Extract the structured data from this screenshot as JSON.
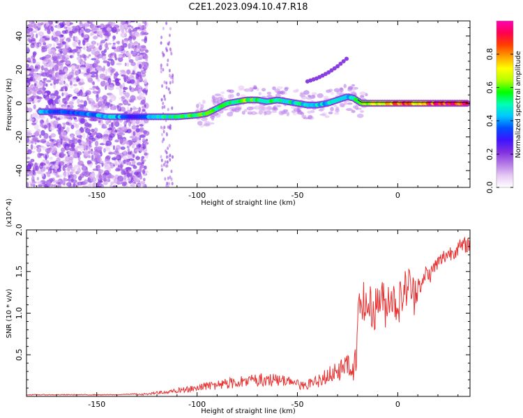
{
  "chart_data": [
    {
      "type": "heatmap",
      "title": "C2E1.2023.094.10.47.R18",
      "xlabel": "Height of straight line (km)",
      "ylabel": "Frequency (Hz)",
      "xlim": [
        -185,
        36
      ],
      "ylim": [
        -50,
        49
      ],
      "x_ticks": [
        -150,
        -100,
        -50,
        0
      ],
      "y_ticks": [
        -40,
        -20,
        0,
        20,
        40
      ],
      "colorbar": {
        "label": "Normalized spectral amplitude",
        "range": [
          0,
          1
        ],
        "ticks": [
          0.0,
          0.2,
          0.4,
          0.6,
          0.8
        ],
        "colormap": [
          "#ffffff",
          "#e6c8f5",
          "#b478e6",
          "#7f2fe0",
          "#3c14ff",
          "#0050ff",
          "#00c8ff",
          "#00ffb4",
          "#00ff00",
          "#b4ff00",
          "#ffff00",
          "#ffa000",
          "#ff3c00",
          "#ff0050",
          "#ff00b4"
        ]
      },
      "main_track": {
        "x": [
          -178,
          -168,
          -158,
          -150,
          -145,
          -138,
          -132,
          -120,
          -110,
          -100,
          -95,
          -90,
          -85,
          -80,
          -75,
          -70,
          -65,
          -60,
          -55,
          -50,
          -45,
          -40,
          -35,
          -30,
          -25,
          -22,
          -18,
          -12,
          -5,
          0,
          5,
          10,
          15,
          20,
          25,
          30,
          35
        ],
        "y": [
          -5,
          -5,
          -6,
          -7,
          -8,
          -8,
          -8,
          -8,
          -8,
          -7,
          -6,
          -3,
          0,
          1,
          2,
          2,
          1,
          2,
          1,
          0,
          -1,
          -1,
          0,
          2,
          4,
          3,
          0,
          0,
          0,
          0,
          0,
          0,
          0,
          0,
          0,
          0,
          0
        ],
        "amplitude": [
          0.45,
          0.35,
          0.35,
          0.4,
          0.45,
          0.4,
          0.3,
          0.45,
          0.55,
          0.6,
          0.55,
          0.55,
          0.55,
          0.55,
          0.6,
          0.5,
          0.55,
          0.55,
          0.5,
          0.45,
          0.5,
          0.45,
          0.45,
          0.45,
          0.45,
          0.5,
          0.55,
          0.65,
          0.7,
          0.8,
          0.85,
          0.75,
          0.85,
          0.9,
          0.9,
          0.9,
          0.85
        ]
      },
      "secondary_track": {
        "x": [
          -45,
          -40,
          -35,
          -30,
          -25
        ],
        "y": [
          13,
          15,
          18,
          22,
          27
        ],
        "amplitude": [
          0.2,
          0.2,
          0.2,
          0.2,
          0.2
        ]
      }
    },
    {
      "type": "line",
      "xlabel": "Height of straight line (km)",
      "ylabel": "SNR (10 * v/v)",
      "y_multiplier": "(x10^4)",
      "xlim": [
        -185,
        36
      ],
      "ylim": [
        0,
        2.0
      ],
      "x_ticks": [
        -150,
        -100,
        -50,
        0
      ],
      "y_ticks": [
        0.5,
        1.0,
        1.5,
        2.0
      ],
      "y_tick_labels": [
        "0.5",
        "1.0",
        "1.5",
        "2.0"
      ],
      "series": [
        {
          "color": "#e83030",
          "x": [
            -185,
            -170,
            -150,
            -140,
            -130,
            -125,
            -120,
            -115,
            -110,
            -105,
            -100,
            -95,
            -90,
            -85,
            -80,
            -75,
            -70,
            -65,
            -60,
            -55,
            -50,
            -45,
            -40,
            -35,
            -30,
            -27,
            -25,
            -22,
            -20,
            -18,
            -16,
            -14,
            -12,
            -10,
            -8,
            -6,
            -4,
            -2,
            0,
            2,
            4,
            6,
            8,
            10,
            12,
            14,
            16,
            18,
            20,
            22,
            24,
            26,
            28,
            30,
            32,
            34,
            36
          ],
          "y": [
            0.02,
            0.02,
            0.02,
            0.02,
            0.03,
            0.04,
            0.06,
            0.07,
            0.1,
            0.12,
            0.15,
            0.18,
            0.2,
            0.22,
            0.25,
            0.25,
            0.28,
            0.28,
            0.27,
            0.25,
            0.2,
            0.2,
            0.25,
            0.35,
            0.45,
            0.45,
            0.5,
            0.45,
            0.9,
            1.2,
            1.05,
            1.1,
            1.0,
            1.15,
            1.2,
            1.05,
            1.25,
            1.15,
            1.1,
            1.2,
            1.3,
            1.35,
            1.2,
            1.4,
            1.3,
            1.5,
            1.45,
            1.55,
            1.6,
            1.65,
            1.7,
            1.72,
            1.75,
            1.78,
            1.8,
            1.82,
            1.84
          ]
        }
      ]
    }
  ]
}
